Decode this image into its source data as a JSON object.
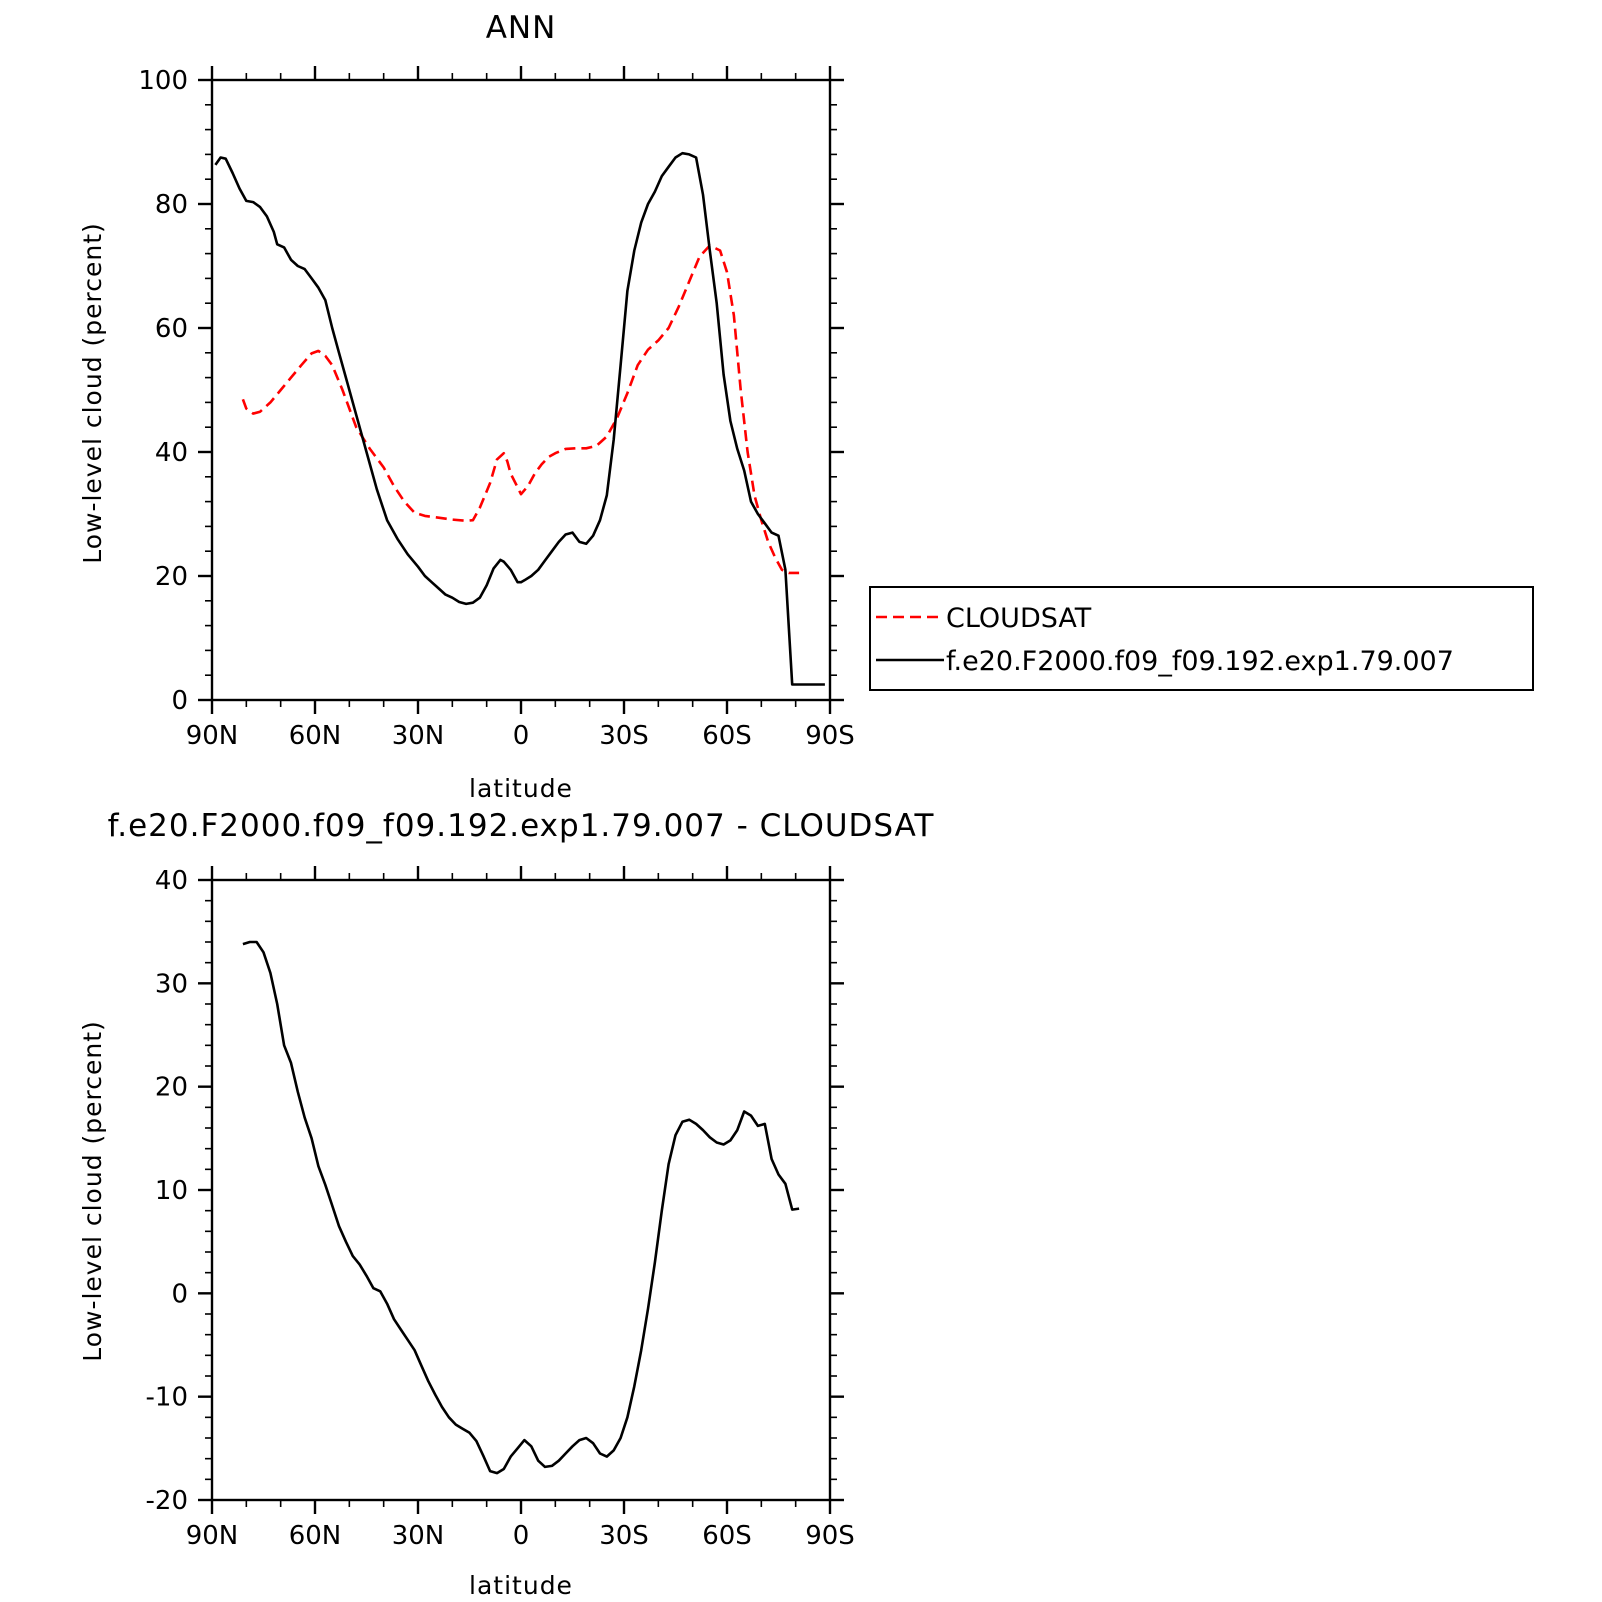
{
  "figure": {
    "panels": [
      {
        "title": "ANN",
        "xlabel": "latitude",
        "ylabel": "Low-level cloud (percent)"
      },
      {
        "title": "f.e20.F2000.f09_f09.192.exp1.79.007 - CLOUDSAT",
        "xlabel": "latitude",
        "ylabel": "Low-level cloud (percent)"
      }
    ]
  },
  "chart_data": [
    {
      "type": "line",
      "title": "ANN",
      "xlabel": "latitude",
      "ylabel": "Low-level cloud (percent)",
      "xlim": [
        90,
        -90
      ],
      "ylim": [
        0,
        100
      ],
      "x_ticks": [
        {
          "value": 90,
          "label": "90N"
        },
        {
          "value": 60,
          "label": "60N"
        },
        {
          "value": 30,
          "label": "30N"
        },
        {
          "value": 0,
          "label": "0"
        },
        {
          "value": -30,
          "label": "30S"
        },
        {
          "value": -60,
          "label": "60S"
        },
        {
          "value": -90,
          "label": "90S"
        }
      ],
      "y_ticks": [
        {
          "value": 0,
          "label": "0"
        },
        {
          "value": 20,
          "label": "20"
        },
        {
          "value": 40,
          "label": "40"
        },
        {
          "value": 60,
          "label": "60"
        },
        {
          "value": 80,
          "label": "80"
        },
        {
          "value": 100,
          "label": "100"
        }
      ],
      "legend_position": "outside-right",
      "series": [
        {
          "name": "CLOUDSAT",
          "color": "#ff0000",
          "style": "dashed",
          "x": [
            81,
            80,
            78,
            76,
            73,
            70,
            67,
            64,
            61,
            59,
            57,
            55,
            52,
            48,
            44,
            40,
            37,
            34,
            31,
            28,
            24,
            20,
            16,
            14,
            12,
            9,
            7,
            5,
            4,
            3,
            1,
            0,
            -2,
            -4,
            -6,
            -8,
            -10,
            -13,
            -16,
            -19,
            -22,
            -25,
            -28,
            -31,
            -34,
            -37,
            -40,
            -43,
            -46,
            -49,
            -52,
            -55,
            -58,
            -60,
            -62,
            -64,
            -66,
            -68,
            -70,
            -72,
            -74,
            -76,
            -78,
            -80,
            -81
          ],
          "y": [
            48.5,
            47,
            46.2,
            46.5,
            48,
            50,
            52,
            54,
            55.9,
            56.3,
            55.5,
            54,
            50,
            44,
            40.5,
            37.5,
            34.5,
            32,
            30.2,
            29.7,
            29.4,
            29.1,
            28.9,
            29,
            31,
            35,
            38.8,
            39.8,
            38.5,
            36.5,
            34.3,
            33.2,
            34.5,
            36.5,
            38,
            39.2,
            39.8,
            40.5,
            40.6,
            40.6,
            41,
            42.5,
            45.5,
            49.5,
            54,
            56.5,
            58,
            60,
            63.5,
            67.5,
            71.5,
            73.3,
            72.5,
            69,
            62,
            50,
            40,
            33,
            29,
            25.5,
            23,
            21,
            20.5,
            20.5,
            20.5
          ]
        },
        {
          "name": "f.e20.F2000.f09_f09.192.exp1.79.007",
          "color": "#000000",
          "style": "solid",
          "x": [
            89,
            87.5,
            86,
            84,
            82,
            80,
            78,
            76,
            74,
            72,
            71,
            69,
            67,
            65,
            63,
            61,
            59,
            57,
            55,
            53,
            51,
            48,
            45,
            42,
            39,
            36,
            33,
            30,
            28,
            26,
            24,
            22,
            20,
            18,
            16,
            14,
            12,
            10,
            8,
            6,
            5,
            3,
            1,
            0,
            -1,
            -3,
            -5,
            -7,
            -9,
            -11,
            -13,
            -15,
            -17,
            -19,
            -21,
            -23,
            -25,
            -27,
            -29,
            -31,
            -33,
            -35,
            -37,
            -39,
            -41,
            -43,
            -45,
            -47,
            -49,
            -51,
            -53,
            -55,
            -57,
            -59,
            -61,
            -63,
            -65,
            -67,
            -69,
            -71,
            -73,
            -75,
            -77,
            -79,
            -81,
            -83,
            -85,
            -87,
            -88.5
          ],
          "y": [
            86.3,
            87.5,
            87.3,
            85,
            82.5,
            80.5,
            80.3,
            79.5,
            78,
            75.5,
            73.5,
            73,
            71,
            70,
            69.5,
            68,
            66.5,
            64.5,
            60,
            56,
            52,
            46,
            40,
            34,
            29,
            26,
            23.5,
            21.5,
            20,
            19,
            18,
            17,
            16.5,
            15.8,
            15.5,
            15.7,
            16.5,
            18.5,
            21.2,
            22.6,
            22.3,
            21,
            19,
            19,
            19.3,
            20,
            21,
            22.5,
            24,
            25.5,
            26.7,
            27,
            25.5,
            25.2,
            26.5,
            29,
            33,
            42,
            54,
            66,
            72.5,
            77,
            80,
            82,
            84.5,
            86,
            87.5,
            88.2,
            88,
            87.5,
            81.5,
            72.5,
            64,
            52.5,
            45,
            40.5,
            37,
            32,
            30,
            28.5,
            27,
            26.5,
            21,
            2.5,
            2.5,
            2.5,
            2.5,
            2.5,
            2.5
          ]
        }
      ]
    },
    {
      "type": "line",
      "title": "f.e20.F2000.f09_f09.192.exp1.79.007 - CLOUDSAT",
      "xlabel": "latitude",
      "ylabel": "Low-level cloud (percent)",
      "xlim": [
        90,
        -90
      ],
      "ylim": [
        -20,
        40
      ],
      "x_ticks": [
        {
          "value": 90,
          "label": "90N"
        },
        {
          "value": 60,
          "label": "60N"
        },
        {
          "value": 30,
          "label": "30N"
        },
        {
          "value": 0,
          "label": "0"
        },
        {
          "value": -30,
          "label": "30S"
        },
        {
          "value": -60,
          "label": "60S"
        },
        {
          "value": -90,
          "label": "90S"
        }
      ],
      "y_ticks": [
        {
          "value": -20,
          "label": "-20"
        },
        {
          "value": -10,
          "label": "-10"
        },
        {
          "value": 0,
          "label": "0"
        },
        {
          "value": 10,
          "label": "10"
        },
        {
          "value": 20,
          "label": "20"
        },
        {
          "value": 30,
          "label": "30"
        },
        {
          "value": 40,
          "label": "40"
        }
      ],
      "series": [
        {
          "color": "#000000",
          "style": "solid",
          "x": [
            81,
            79,
            77,
            75,
            73,
            71,
            69,
            67,
            65,
            63,
            61,
            59,
            57,
            55,
            53,
            51,
            49,
            47,
            45,
            43,
            41,
            39,
            37,
            35,
            33,
            31,
            29,
            27,
            25,
            23,
            21,
            19,
            17,
            15,
            13,
            11,
            9,
            7,
            5,
            3,
            1,
            -1,
            -3,
            -5,
            -7,
            -9,
            -11,
            -13,
            -15,
            -17,
            -19,
            -21,
            -23,
            -25,
            -27,
            -29,
            -31,
            -33,
            -35,
            -37,
            -39,
            -41,
            -43,
            -45,
            -47,
            -49,
            -51,
            -53,
            -55,
            -57,
            -59,
            -61,
            -63,
            -65,
            -67,
            -69,
            -71,
            -73,
            -75,
            -77,
            -79,
            -81
          ],
          "y": [
            33.8,
            34,
            34,
            33,
            31,
            28,
            24,
            22.3,
            19.5,
            17,
            15,
            12.3,
            10.5,
            8.5,
            6.5,
            5,
            3.6,
            2.8,
            1.7,
            0.5,
            0.2,
            -1,
            -2.5,
            -3.5,
            -4.5,
            -5.5,
            -7,
            -8.5,
            -9.8,
            -11,
            -12,
            -12.7,
            -13.1,
            -13.5,
            -14.3,
            -15.7,
            -17.2,
            -17.4,
            -17,
            -15.8,
            -15,
            -14.2,
            -14.8,
            -16.2,
            -16.8,
            -16.7,
            -16.2,
            -15.5,
            -14.8,
            -14.2,
            -14,
            -14.5,
            -15.5,
            -15.8,
            -15.2,
            -14,
            -12,
            -9,
            -5.5,
            -1.5,
            3,
            8,
            12.5,
            15.3,
            16.6,
            16.8,
            16.4,
            15.8,
            15.1,
            14.6,
            14.4,
            14.8,
            15.8,
            17.6,
            17.2,
            16.2,
            16.4,
            13,
            11.5,
            10.6,
            8.1,
            8.2
          ]
        }
      ]
    }
  ]
}
